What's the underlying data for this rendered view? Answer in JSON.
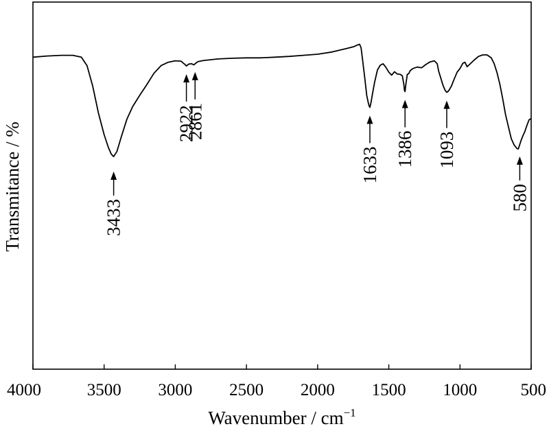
{
  "chart_data": {
    "type": "line",
    "title": "",
    "xlabel": "Wavenumber / cm",
    "xlabel_sup": "−1",
    "ylabel": "Transmitance / %",
    "xlim": [
      4000,
      500
    ],
    "ylim": [
      0,
      100
    ],
    "x_reversed": true,
    "y_ticks_shown": false,
    "grid": false,
    "legend": "none",
    "line_color": "#000000",
    "x_ticks": [
      {
        "value": 4000,
        "label": "4000"
      },
      {
        "value": 3500,
        "label": "3500"
      },
      {
        "value": 3000,
        "label": "3000"
      },
      {
        "value": 2500,
        "label": "2500"
      },
      {
        "value": 2000,
        "label": "2000"
      },
      {
        "value": 1500,
        "label": "1500"
      },
      {
        "value": 1000,
        "label": "1000"
      },
      {
        "value": 500,
        "label": "500"
      }
    ],
    "series": [
      {
        "x": [
          4000,
          3900,
          3800,
          3720,
          3660,
          3620,
          3580,
          3540,
          3500,
          3470,
          3450,
          3433,
          3410,
          3380,
          3340,
          3300,
          3250,
          3200,
          3150,
          3100,
          3050,
          3000,
          2960,
          2935,
          2922,
          2905,
          2885,
          2870,
          2861,
          2840,
          2800,
          2700,
          2600,
          2500,
          2400,
          2300,
          2200,
          2100,
          2000,
          1900,
          1800,
          1750,
          1720,
          1705,
          1695,
          1685,
          1670,
          1655,
          1645,
          1638,
          1633,
          1625,
          1615,
          1600,
          1580,
          1560,
          1540,
          1520,
          1500,
          1480,
          1460,
          1440,
          1420,
          1405,
          1395,
          1390,
          1386,
          1380,
          1370,
          1360,
          1350,
          1330,
          1300,
          1270,
          1240,
          1210,
          1180,
          1160,
          1150,
          1135,
          1120,
          1105,
          1093,
          1080,
          1060,
          1040,
          1020,
          1000,
          980,
          965,
          950,
          930,
          900,
          870,
          840,
          810,
          780,
          760,
          740,
          720,
          700,
          680,
          660,
          640,
          620,
          600,
          590,
          580,
          570,
          560,
          545,
          530,
          515,
          500
        ],
        "y": [
          85.0,
          85.3,
          85.5,
          85.5,
          85.0,
          82.7,
          77.1,
          69.8,
          63.9,
          60.4,
          58.6,
          57.9,
          59.3,
          63.2,
          68.1,
          71.5,
          74.6,
          77.5,
          80.6,
          82.7,
          83.6,
          84.0,
          83.9,
          83.1,
          82.6,
          83.1,
          83.2,
          82.9,
          83.2,
          83.8,
          84.1,
          84.5,
          84.7,
          84.8,
          84.8,
          85.0,
          85.2,
          85.5,
          85.8,
          86.4,
          87.3,
          87.8,
          88.3,
          88.5,
          87.6,
          84.5,
          79.7,
          74.6,
          72.7,
          71.7,
          71.3,
          72.6,
          74.9,
          78.1,
          81.5,
          82.8,
          83.2,
          82.2,
          80.9,
          80.1,
          81.0,
          80.4,
          80.3,
          79.9,
          77.7,
          75.9,
          75.6,
          77.7,
          80.3,
          80.5,
          81.3,
          81.9,
          82.3,
          82.1,
          83.0,
          83.7,
          84.0,
          83.2,
          81.2,
          79.3,
          77.4,
          76.0,
          75.4,
          75.8,
          77.1,
          79.1,
          80.9,
          81.9,
          83.3,
          83.6,
          82.4,
          83.1,
          84.2,
          85.2,
          85.6,
          85.6,
          84.8,
          83.2,
          80.8,
          77.6,
          73.7,
          69.3,
          66.1,
          62.8,
          61.1,
          60.1,
          60.0,
          61.2,
          62.4,
          63.4,
          64.7,
          66.4,
          67.9,
          68.3
        ]
      }
    ],
    "annotations": [
      {
        "label": "3433",
        "x": 3433
      },
      {
        "label": "2922",
        "x": 2922
      },
      {
        "label": "2861",
        "x": 2861
      },
      {
        "label": "1633",
        "x": 1633
      },
      {
        "label": "1386",
        "x": 1386
      },
      {
        "label": "1093",
        "x": 1093
      },
      {
        "label": "580",
        "x": 580
      }
    ]
  }
}
